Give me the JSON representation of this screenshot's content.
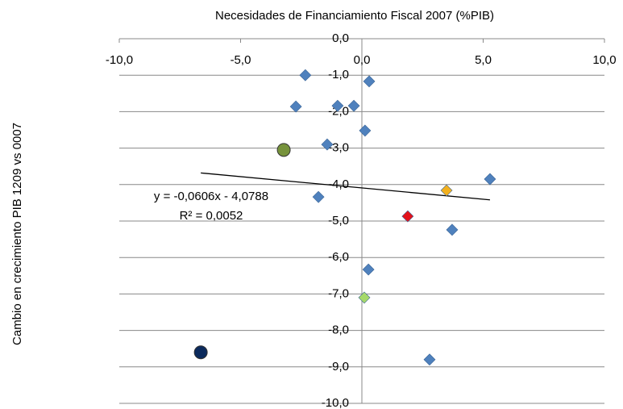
{
  "chart_data": {
    "type": "scatter",
    "title": "Necesidades de Financiamiento  Fiscal  2007 (%PIB)",
    "y_label": "Cambio en crecimiento PIB 1209 vs 0007",
    "x": [
      -2.33,
      0.3,
      -2.72,
      -1.0,
      -0.33,
      0.13,
      -1.43,
      -3.22,
      5.28,
      3.49,
      -1.79,
      1.89,
      3.72,
      0.27,
      0.1,
      -6.64,
      2.79
    ],
    "y": [
      -1.0,
      -1.17,
      -1.86,
      -1.84,
      -1.84,
      -2.52,
      -2.9,
      -3.05,
      -3.85,
      -4.16,
      -4.34,
      -4.87,
      -5.24,
      -6.33,
      -7.1,
      -8.6,
      -8.8
    ],
    "colors": [
      "#4f81bd",
      "#4f81bd",
      "#4f81bd",
      "#4f81bd",
      "#4f81bd",
      "#4f81bd",
      "#4f81bd",
      "#77933c",
      "#4f81bd",
      "#f2b01e",
      "#4f81bd",
      "#e3121b",
      "#4f81bd",
      "#4f81bd",
      "#a6d96a",
      "#0b2a5c",
      "#4f81bd"
    ],
    "markers": [
      "diamond",
      "diamond",
      "diamond",
      "diamond",
      "diamond",
      "diamond",
      "diamond",
      "circle",
      "diamond",
      "diamond",
      "diamond",
      "diamond",
      "diamond",
      "diamond",
      "diamond",
      "circle",
      "diamond"
    ],
    "xlim": [
      -10,
      10
    ],
    "xticks": [
      {
        "value": -10,
        "label": "-10,0"
      },
      {
        "value": -5,
        "label": "-5,0"
      },
      {
        "value": 0,
        "label": "0,0"
      },
      {
        "value": 5,
        "label": "5,0"
      },
      {
        "value": 10,
        "label": "10,0"
      }
    ],
    "ylim": [
      -10,
      0
    ],
    "yticks": [
      {
        "value": 0,
        "label": "0,0"
      },
      {
        "value": -1,
        "label": "-1,0"
      },
      {
        "value": -2,
        "label": "-2,0"
      },
      {
        "value": -3,
        "label": "-3,0"
      },
      {
        "value": -4,
        "label": "-4,0"
      },
      {
        "value": -5,
        "label": "-5,0"
      },
      {
        "value": -6,
        "label": "-6,0"
      },
      {
        "value": -7,
        "label": "-7,0"
      },
      {
        "value": -8,
        "label": "-8,0"
      },
      {
        "value": -9,
        "label": "-9,0"
      },
      {
        "value": -10,
        "label": "-10,0"
      }
    ],
    "grid": true,
    "trendline": {
      "equation": "y = -0,0606x - 4,0788",
      "r2": "R² = 0,0052"
    }
  }
}
